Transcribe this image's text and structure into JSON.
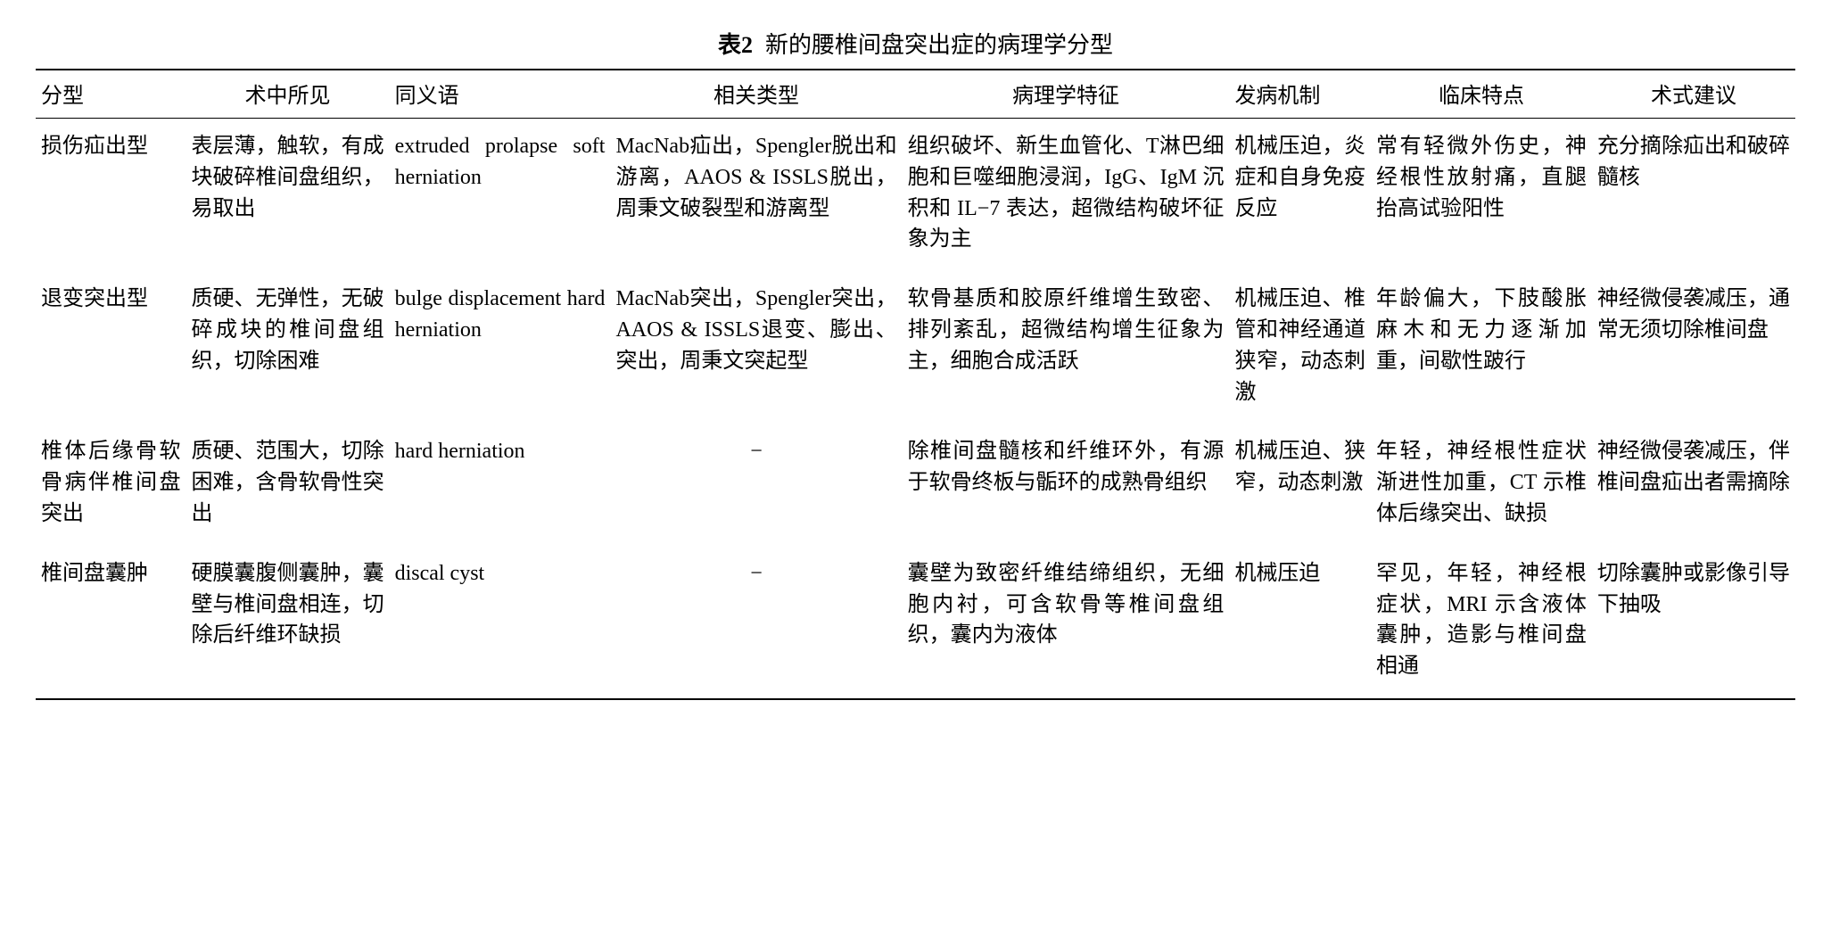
{
  "caption": {
    "label": "表2",
    "title": "新的腰椎间盘突出症的病理学分型"
  },
  "columns": [
    "分型",
    "术中所见",
    "同义语",
    "相关类型",
    "病理学特征",
    "发病机制",
    "临床特点",
    "术式建议"
  ],
  "rows": [
    {
      "type": "损伤疝出型",
      "intraop": "表层薄，触软，有成块破碎椎间盘组织，易取出",
      "syn": "extruded prolapse soft herniation",
      "related": "MacNab疝出，Spengler脱出和游离，AAOS & ISSLS脱出，周秉文破裂型和游离型",
      "path": "组织破坏、新生血管化、T淋巴细胞和巨噬细胞浸润，IgG、IgM 沉积和 IL−7 表达，超微结构破坏征象为主",
      "mech": "机械压迫，炎症和自身免疫反应",
      "clin": "常有轻微外伤史，神经根性放射痛，直腿抬高试验阳性",
      "sugg": "充分摘除疝出和破碎髓核"
    },
    {
      "type": "退变突出型",
      "intraop": "质硬、无弹性，无破碎成块的椎间盘组织，切除困难",
      "syn": "bulge displacement hard herniation",
      "related": "MacNab突出，Spengler突出，AAOS & ISSLS退变、膨出、突出，周秉文突起型",
      "path": "软骨基质和胶原纤维增生致密、排列紊乱，超微结构增生征象为主，细胞合成活跃",
      "mech": "机械压迫、椎管和神经通道狭窄，动态刺激",
      "clin": "年龄偏大，下肢酸胀麻木和无力逐渐加重，间歇性跛行",
      "sugg": "神经微侵袭减压，通常无须切除椎间盘"
    },
    {
      "type": "椎体后缘骨软骨病伴椎间盘突出",
      "intraop": "质硬、范围大，切除困难，含骨软骨性突出",
      "syn": "hard herniation",
      "related": "−",
      "path": "除椎间盘髓核和纤维环外，有源于软骨终板与骺环的成熟骨组织",
      "mech": "机械压迫、狭窄，动态刺激",
      "clin": "年轻，神经根性症状渐进性加重，CT 示椎体后缘突出、缺损",
      "sugg": "神经微侵袭减压，伴椎间盘疝出者需摘除"
    },
    {
      "type": "椎间盘囊肿",
      "intraop": "硬膜囊腹侧囊肿，囊壁与椎间盘相连，切除后纤维环缺损",
      "syn": "discal cyst",
      "related": "−",
      "path": "囊壁为致密纤维结缔组织，无细胞内衬，可含软骨等椎间盘组织，囊内为液体",
      "mech": "机械压迫",
      "clin": "罕见，年轻，神经根症状，MRI 示含液体囊肿，造影与椎间盘相通",
      "sugg": "切除囊肿或影像引导下抽吸"
    }
  ]
}
